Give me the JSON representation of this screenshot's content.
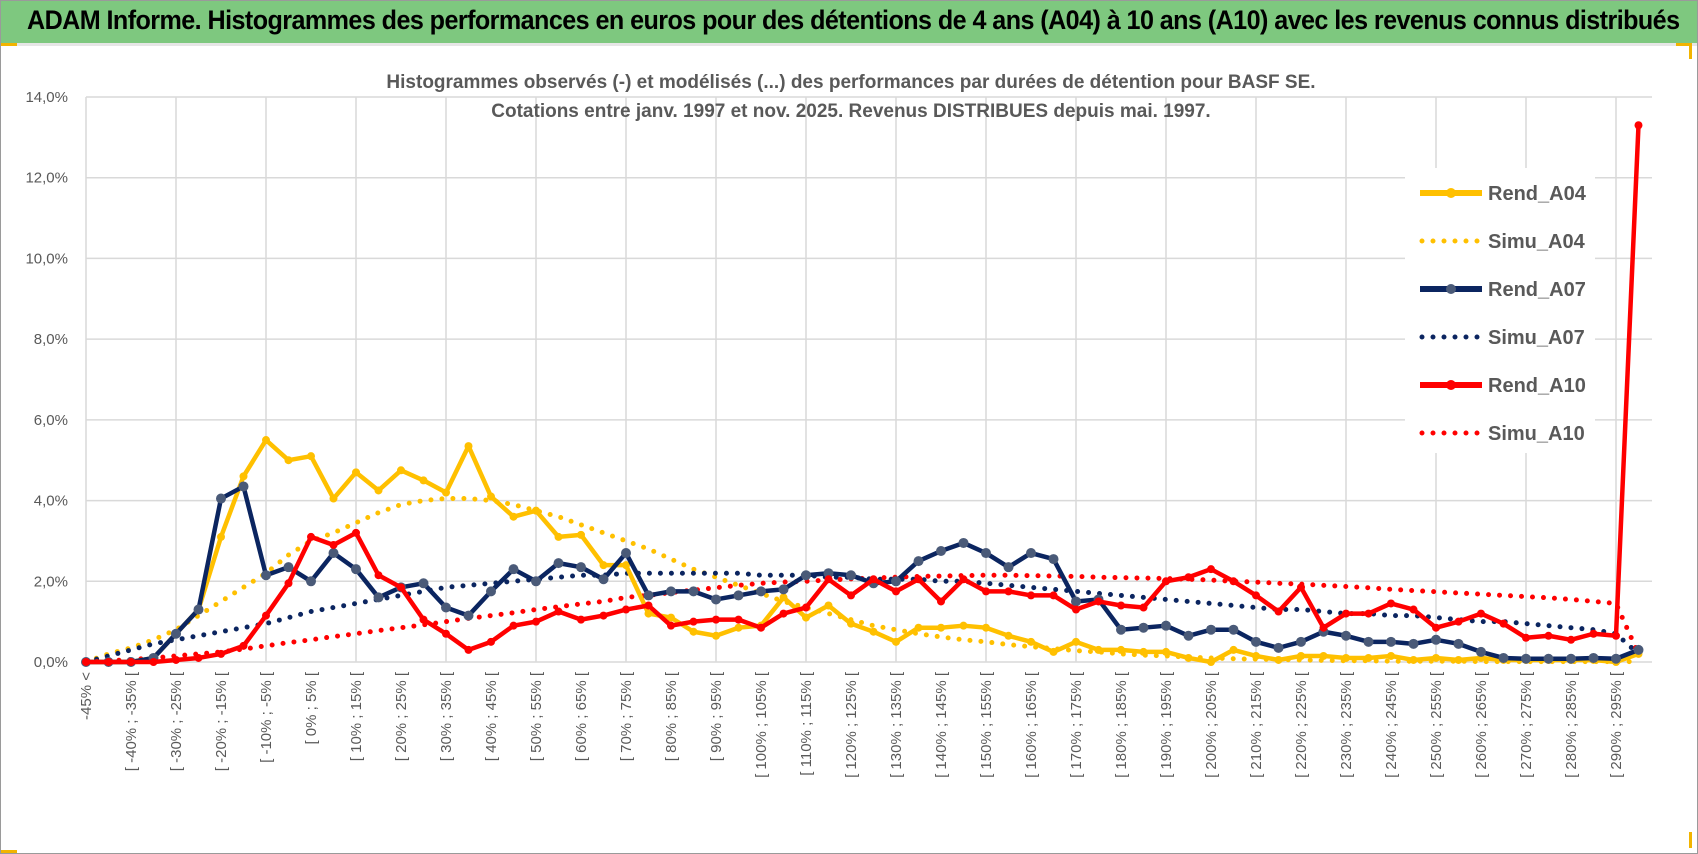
{
  "header": {
    "title": "ADAM Informe. Histogrammes des performances en euros pour des détentions de 4 ans (A04) à 10 ans (A10) avec les revenus connus distribués"
  },
  "chart_data": {
    "type": "line",
    "title_lines": [
      "Histogrammes observés (-) et modélisés (...) des performances par durées de détention pour BASF SE.",
      "Cotations entre janv. 1997 et nov. 2025. Revenus DISTRIBUES depuis mai. 1997."
    ],
    "xlabel": "",
    "ylabel": "",
    "ylim": [
      0,
      14
    ],
    "y_ticks": [
      "0,0%",
      "2,0%",
      "4,0%",
      "6,0%",
      "8,0%",
      "10,0%",
      "12,0%",
      "14,0%"
    ],
    "y_tick_values": [
      0,
      2,
      4,
      6,
      8,
      10,
      12,
      14
    ],
    "n_points": 70,
    "x_tick_labels": [
      "-45% <",
      "[ -40% ; -35% [",
      "[ -30% ; -25% [",
      "[ -20% ; -15% [",
      "[ -10% ; -5% [",
      "[ 0% ; 5% [",
      "[ 10% ; 15% [",
      "[ 20% ; 25% [",
      "[ 30% ; 35% [",
      "[ 40% ; 45% [",
      "[ 50% ; 55% [",
      "[ 60% ; 65% [",
      "[ 70% ; 75% [",
      "[ 80% ; 85% [",
      "[ 90% ; 95% [",
      "[ 100% ; 105% [",
      "[ 110% ; 115% [",
      "[ 120% ; 125% [",
      "[ 130% ; 135% [",
      "[ 140% ; 145% [",
      "[ 150% ; 155% [",
      "[ 160% ; 165% [",
      "[ 170% ; 175% [",
      "[ 180% ; 185% [",
      "[ 190% ; 195% [",
      "[ 200% ; 205% [",
      "[ 210% ; 215% [",
      "[ 220% ; 225% [",
      "[ 230% ; 235% [",
      "[ 240% ; 245% [",
      "[ 250% ; 255% [",
      "[ 260% ; 265% [",
      "[ 270% ; 275% [",
      "[ 280% ; 285% [",
      "[ 290% ; 295% ["
    ],
    "x_tick_every": 2,
    "grid": true,
    "legend_position": "right",
    "series": [
      {
        "name": "Rend_A04",
        "style": "solid",
        "color": "#FFC000",
        "values": [
          0,
          0,
          0,
          0.1,
          0.7,
          1.3,
          3.1,
          4.6,
          5.5,
          5.0,
          5.1,
          4.05,
          4.7,
          4.25,
          4.75,
          4.5,
          4.2,
          5.35,
          4.1,
          3.6,
          3.75,
          3.1,
          3.15,
          2.4,
          2.4,
          1.2,
          1.1,
          0.75,
          0.65,
          0.85,
          0.9,
          1.6,
          1.1,
          1.4,
          0.95,
          0.75,
          0.5,
          0.85,
          0.85,
          0.9,
          0.85,
          0.65,
          0.5,
          0.25,
          0.5,
          0.3,
          0.3,
          0.25,
          0.25,
          0.1,
          0.0,
          0.3,
          0.15,
          0.05,
          0.15,
          0.15,
          0.1,
          0.1,
          0.15,
          0.05,
          0.1,
          0.05,
          0.1,
          0.05,
          0.05,
          0.05,
          0.05,
          0.05,
          0.0,
          0.2
        ]
      },
      {
        "name": "Simu_A04",
        "style": "dotted",
        "color": "#FFC000",
        "values": [
          0,
          0.2,
          0.35,
          0.55,
          0.8,
          1.15,
          1.5,
          1.85,
          2.2,
          2.65,
          3.0,
          3.2,
          3.45,
          3.7,
          3.9,
          4.0,
          4.05,
          4.05,
          4.0,
          3.9,
          3.75,
          3.6,
          3.4,
          3.2,
          3.0,
          2.8,
          2.55,
          2.3,
          2.1,
          1.9,
          1.7,
          1.5,
          1.35,
          1.2,
          1.05,
          0.9,
          0.8,
          0.7,
          0.62,
          0.55,
          0.5,
          0.43,
          0.38,
          0.33,
          0.28,
          0.25,
          0.2,
          0.17,
          0.15,
          0.12,
          0.1,
          0.08,
          0.07,
          0.06,
          0.05,
          0.04,
          0.03,
          0.03,
          0.02,
          0.02,
          0.02,
          0.02,
          0.01,
          0.01,
          0.01,
          0.01,
          0.01,
          0.01,
          0.01,
          0.01
        ]
      },
      {
        "name": "Rend_A07",
        "style": "solid",
        "color": "#0B2560",
        "values": [
          0,
          0,
          0,
          0.1,
          0.7,
          1.3,
          4.05,
          4.35,
          2.15,
          2.35,
          2.0,
          2.7,
          2.3,
          1.6,
          1.85,
          1.95,
          1.35,
          1.15,
          1.75,
          2.3,
          2.0,
          2.45,
          2.35,
          2.05,
          2.7,
          1.65,
          1.75,
          1.75,
          1.55,
          1.65,
          1.75,
          1.8,
          2.15,
          2.2,
          2.15,
          1.95,
          2.0,
          2.5,
          2.75,
          2.95,
          2.7,
          2.35,
          2.7,
          2.55,
          1.5,
          1.55,
          0.8,
          0.85,
          0.9,
          0.65,
          0.8,
          0.8,
          0.5,
          0.35,
          0.5,
          0.75,
          0.65,
          0.5,
          0.5,
          0.45,
          0.55,
          0.45,
          0.25,
          0.1,
          0.08,
          0.08,
          0.08,
          0.1,
          0.08,
          0.3
        ]
      },
      {
        "name": "Simu_A07",
        "style": "dotted",
        "color": "#0B2560",
        "values": [
          0,
          0.15,
          0.3,
          0.45,
          0.55,
          0.65,
          0.75,
          0.85,
          0.95,
          1.1,
          1.25,
          1.35,
          1.45,
          1.55,
          1.65,
          1.75,
          1.85,
          1.9,
          1.95,
          2.0,
          2.05,
          2.1,
          2.15,
          2.15,
          2.2,
          2.2,
          2.2,
          2.2,
          2.2,
          2.2,
          2.15,
          2.15,
          2.15,
          2.1,
          2.1,
          2.05,
          2.05,
          2.05,
          2.0,
          2.0,
          1.95,
          1.9,
          1.85,
          1.8,
          1.75,
          1.7,
          1.65,
          1.6,
          1.55,
          1.5,
          1.45,
          1.4,
          1.35,
          1.3,
          1.3,
          1.25,
          1.2,
          1.2,
          1.15,
          1.15,
          1.1,
          1.05,
          1.0,
          1.0,
          0.95,
          0.9,
          0.85,
          0.8,
          0.7,
          0.2
        ]
      },
      {
        "name": "Rend_A10",
        "style": "solid",
        "color": "#FF0000",
        "values": [
          0,
          0,
          0,
          0,
          0.05,
          0.1,
          0.2,
          0.4,
          1.15,
          1.95,
          3.1,
          2.9,
          3.2,
          2.15,
          1.85,
          1.05,
          0.7,
          0.3,
          0.5,
          0.9,
          1.0,
          1.25,
          1.05,
          1.15,
          1.3,
          1.4,
          0.9,
          1.0,
          1.05,
          1.05,
          0.85,
          1.2,
          1.35,
          2.05,
          1.65,
          2.05,
          1.75,
          2.05,
          1.5,
          2.05,
          1.75,
          1.75,
          1.65,
          1.65,
          1.3,
          1.5,
          1.4,
          1.35,
          2.0,
          2.1,
          2.3,
          2.0,
          1.65,
          1.25,
          1.85,
          0.85,
          1.2,
          1.2,
          1.45,
          1.3,
          0.85,
          1.0,
          1.2,
          0.95,
          0.6,
          0.65,
          0.55,
          0.7,
          0.65,
          13.3
        ]
      },
      {
        "name": "Simu_A10",
        "style": "dotted",
        "color": "#FF0000",
        "values": [
          0,
          0.03,
          0.06,
          0.1,
          0.15,
          0.2,
          0.25,
          0.32,
          0.4,
          0.48,
          0.55,
          0.63,
          0.7,
          0.78,
          0.85,
          0.92,
          1.0,
          1.08,
          1.15,
          1.22,
          1.3,
          1.37,
          1.44,
          1.5,
          1.6,
          1.65,
          1.72,
          1.78,
          1.84,
          1.9,
          1.95,
          1.98,
          2.0,
          2.03,
          2.06,
          2.08,
          2.1,
          2.12,
          2.13,
          2.14,
          2.15,
          2.15,
          2.14,
          2.13,
          2.12,
          2.1,
          2.09,
          2.08,
          2.07,
          2.05,
          2.03,
          2.0,
          1.98,
          1.95,
          1.93,
          1.9,
          1.87,
          1.84,
          1.8,
          1.77,
          1.74,
          1.71,
          1.68,
          1.65,
          1.62,
          1.59,
          1.55,
          1.5,
          1.45,
          0.2
        ]
      }
    ]
  }
}
